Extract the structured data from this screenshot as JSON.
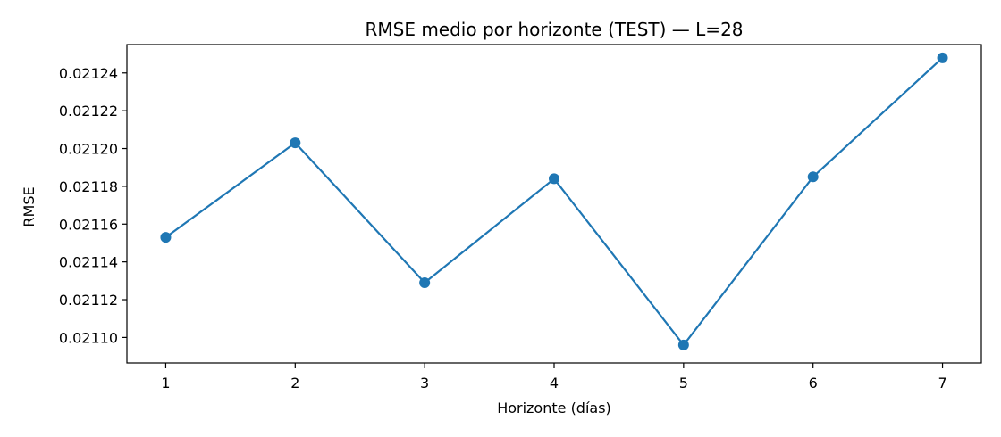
{
  "chart_data": {
    "type": "line",
    "title": "RMSE medio por horizonte (TEST) — L=28",
    "xlabel": "Horizonte (días)",
    "ylabel": "RMSE",
    "x": [
      1,
      2,
      3,
      4,
      5,
      6,
      7
    ],
    "series": [
      {
        "values": [
          0.021153,
          0.021203,
          0.021129,
          0.021184,
          0.021096,
          0.021185,
          0.021248
        ],
        "color": "#1f77b4",
        "marker": "circle"
      }
    ],
    "xlim": [
      0.7,
      7.3
    ],
    "ylim": [
      0.0210865,
      0.021255
    ],
    "x_ticks": [
      1,
      2,
      3,
      4,
      5,
      6,
      7
    ],
    "x_tick_labels": [
      "1",
      "2",
      "3",
      "4",
      "5",
      "6",
      "7"
    ],
    "y_ticks": [
      0.0211,
      0.02112,
      0.02114,
      0.02116,
      0.02118,
      0.0212,
      0.02122,
      0.02124
    ],
    "y_tick_labels": [
      "0.02110",
      "0.02112",
      "0.02114",
      "0.02116",
      "0.02118",
      "0.02120",
      "0.02122",
      "0.02124"
    ],
    "grid": false,
    "legend": false
  }
}
